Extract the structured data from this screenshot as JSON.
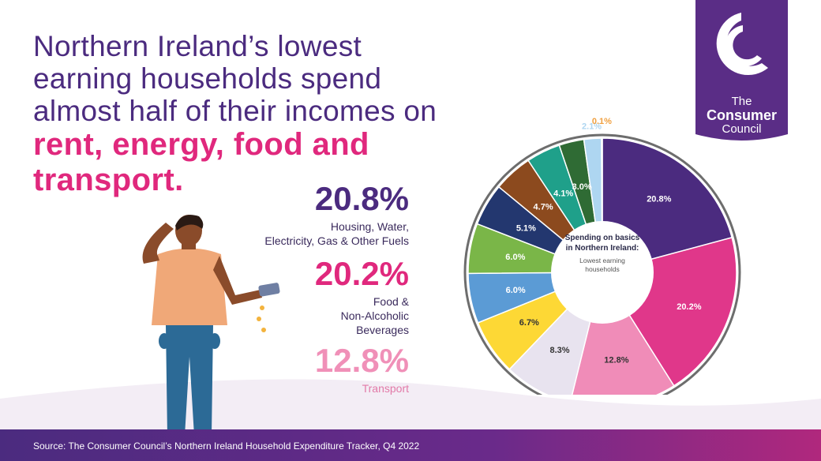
{
  "headline": {
    "line1": "Northern Ireland’s lowest",
    "line2": "earning households spend",
    "line3": "almost half of their incomes on",
    "line4": "rent, energy, food and",
    "line5": "transport."
  },
  "stats": [
    {
      "value": "20.8%",
      "label_lines": [
        "Housing, Water,",
        "Electricity, Gas & Other Fuels"
      ]
    },
    {
      "value": "20.2%",
      "label_lines": [
        "Food &",
        "Non-Alcoholic",
        "Beverages"
      ]
    },
    {
      "value": "12.8%",
      "label_lines": [
        "Transport"
      ]
    }
  ],
  "logo": {
    "line1": "The",
    "line2": "Consumer",
    "line3": "Council"
  },
  "chart_data": {
    "type": "pie",
    "center_title_lines": [
      "Spending on basics",
      "in Northern Ireland:"
    ],
    "center_subtitle_lines": [
      "Lowest earning",
      "households"
    ],
    "slices": [
      {
        "label": "20.8%",
        "value": 20.8,
        "color": "#4b2b7f"
      },
      {
        "label": "20.2%",
        "value": 20.2,
        "color": "#e0378a"
      },
      {
        "label": "12.8%",
        "value": 12.8,
        "color": "#f08cb8"
      },
      {
        "label": "8.3%",
        "value": 8.3,
        "color": "#e8e3ef"
      },
      {
        "label": "6.7%",
        "value": 6.7,
        "color": "#fdd835"
      },
      {
        "label": "6.0%",
        "value": 6.0,
        "color": "#5b9bd5"
      },
      {
        "label": "6.0%",
        "value": 6.0,
        "color": "#7ab648"
      },
      {
        "label": "5.1%",
        "value": 5.1,
        "color": "#23376f"
      },
      {
        "label": "4.7%",
        "value": 4.7,
        "color": "#8c4a1e"
      },
      {
        "label": "4.1%",
        "value": 4.1,
        "color": "#1fa08a"
      },
      {
        "label": "3.0%",
        "value": 3.0,
        "color": "#2f6b34"
      },
      {
        "label": "2.1%",
        "value": 2.1,
        "color": "#aed6f1"
      },
      {
        "label": "0.1%",
        "value": 0.1,
        "color": "#f0a040"
      }
    ]
  },
  "footer": {
    "source": "Source: The Consumer Council’s Northern Ireland Household Expenditure Tracker, Q4 2022"
  }
}
